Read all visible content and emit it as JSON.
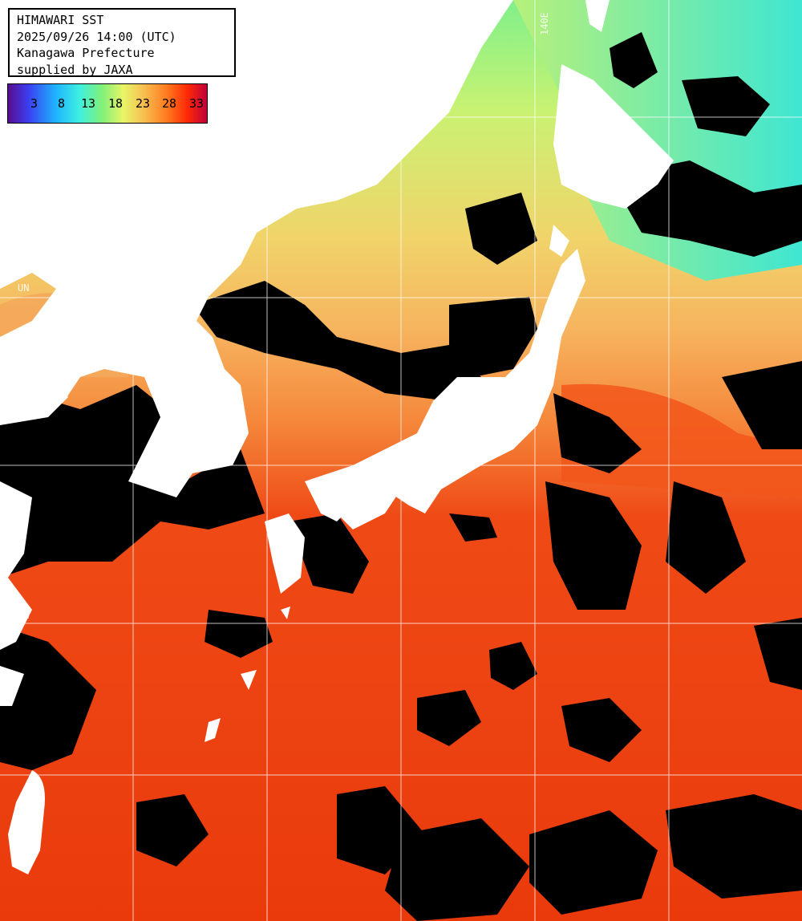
{
  "info": {
    "title": "HIMAWARI SST",
    "datetime": "2025/09/26 14:00 (UTC)",
    "region": "Kanagawa Prefecture",
    "credit": "supplied by JAXA"
  },
  "legend": {
    "ticks": [
      "3",
      "8",
      "13",
      "18",
      "23",
      "28",
      "33"
    ],
    "colors": [
      "#5a0d8c",
      "#3b3df0",
      "#1fb4ff",
      "#3ff0e0",
      "#7ff07a",
      "#e8f566",
      "#f7c052",
      "#ff7a1f",
      "#ff2a05",
      "#c0003a"
    ]
  },
  "grid_labels": {
    "lon_140": "140E",
    "lat_a": "UN",
    "lat_b": "UN"
  },
  "colors": {
    "cloud": "#000000",
    "land": "#ffffff",
    "sea_cold": "#4be8c8",
    "sea_cool": "#9cf07c",
    "sea_mild": "#e8f070",
    "sea_warm": "#f4b660",
    "sea_hot": "#ee3f12",
    "grid": "#ffffff"
  }
}
